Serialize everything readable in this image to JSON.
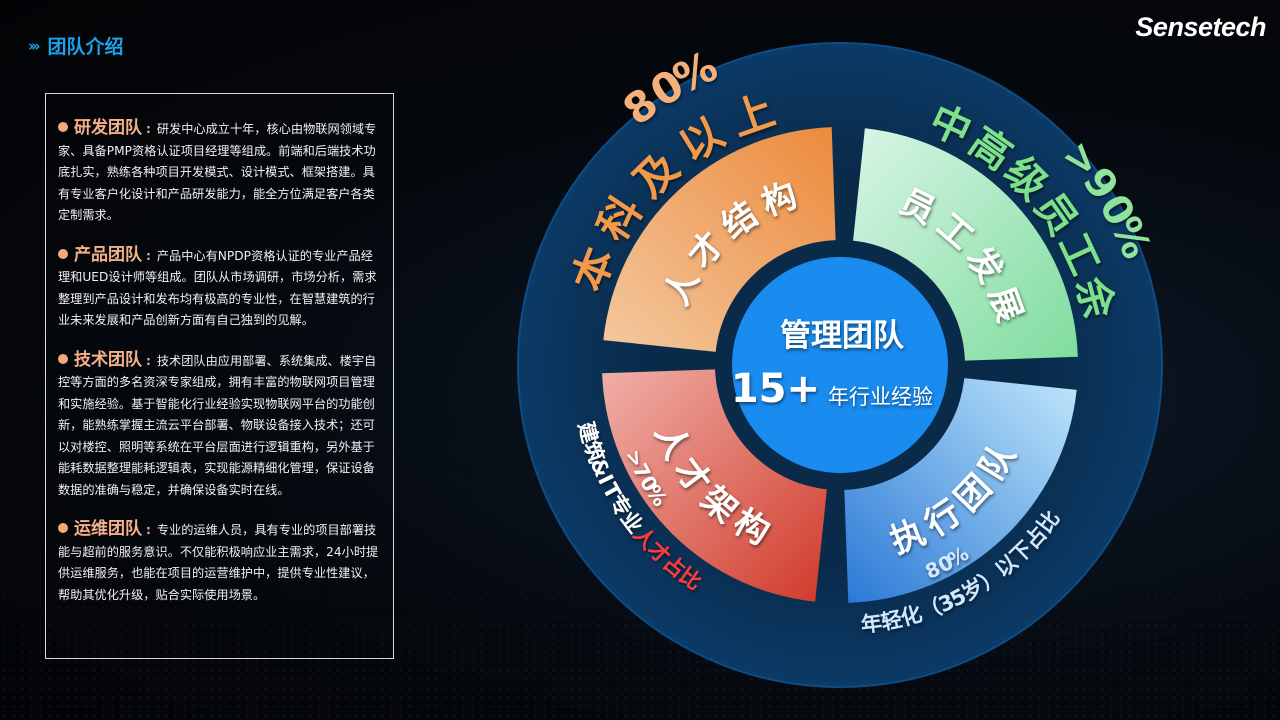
{
  "header": {
    "title": "团队介绍",
    "chevron_icon": "triple-chevron-right",
    "logo": "Sensetech"
  },
  "teams": [
    {
      "name": "研发团队",
      "desc": "研发中心成立十年，核心由物联网领域专家、具备PMP资格认证项目经理等组成。前端和后端技术功底扎实，熟练各种项目开发模式、设计模式、框架搭建。具有专业客户化设计和产品研发能力，能全方位满足客户各类定制需求。"
    },
    {
      "name": "产品团队",
      "desc": "产品中心有NPDP资格认证的专业产品经理和UED设计师等组成。团队从市场调研，市场分析，需求整理到产品设计和发布均有极高的专业性，在智慧建筑的行业未来发展和产品创新方面有自己独到的见解。"
    },
    {
      "name": "技术团队",
      "desc": "技术团队由应用部署、系统集成、楼宇自控等方面的多名资深专家组成，拥有丰富的物联网项目管理和实施经验。基于智能化行业经验实现物联网平台的功能创新，能熟练掌握主流云平台部署、物联设备接入技术；还可以对楼控、照明等系统在平台层面进行逻辑重构，另外基于能耗数据整理能耗逻辑表，实现能源精细化管理，保证设备数据的准确与稳定，并确保设备实时在线。"
    },
    {
      "name": "运维团队",
      "desc": "专业的运维人员，具有专业的项目部署技能与超前的服务意识。不仅能积极响应业主需求，24小时提供运维服务，也能在项目的运营维护中，提供专业性建议，帮助其优化升级，贴合实际使用场景。"
    }
  ],
  "diagram": {
    "center": {
      "title": "管理团队",
      "number": "15+",
      "suffix": "年行业经验",
      "color": "#1a8cf0"
    },
    "segments": [
      {
        "label": "人才结构",
        "color": "#f0a25e"
      },
      {
        "label": "员工发展",
        "color": "#a8e6c0"
      },
      {
        "label": "执行团队",
        "color": "#5aa6e8"
      },
      {
        "label": "人才架构",
        "color": "#e0604e"
      }
    ],
    "outer": {
      "top_left": {
        "text": "本科及以上",
        "value": "80%"
      },
      "top_right": {
        "text": "中高级员工余",
        "value": ">90%"
      },
      "bottom_left": {
        "text_a": "建筑&IT专业",
        "text_b": "人才占比",
        "value": ">70%"
      },
      "bottom_right": {
        "text": "年轻化（35岁）以下占比",
        "value": "80%"
      }
    }
  }
}
